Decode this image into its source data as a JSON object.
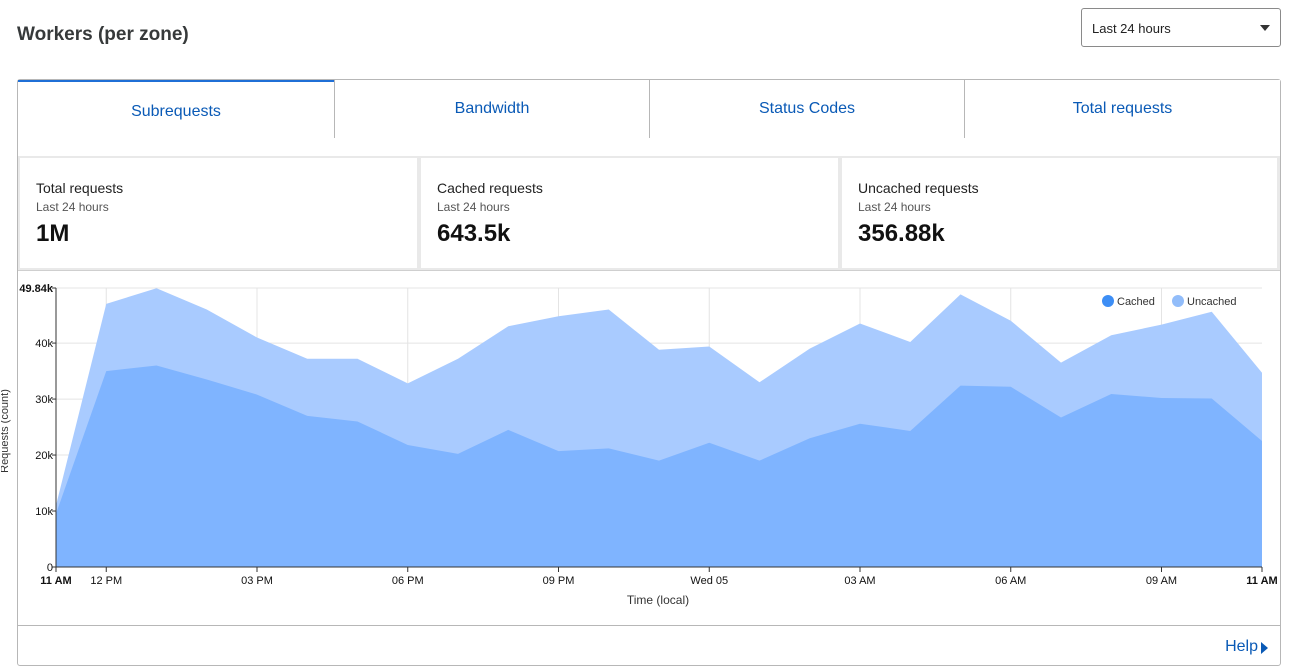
{
  "header": {
    "title": "Workers (per zone)"
  },
  "time_range": {
    "selected": "Last 24 hours"
  },
  "tabs": [
    {
      "label": "Subrequests",
      "active": true
    },
    {
      "label": "Bandwidth",
      "active": false
    },
    {
      "label": "Status Codes",
      "active": false
    },
    {
      "label": "Total requests",
      "active": false
    }
  ],
  "stats": [
    {
      "label": "Total requests",
      "period": "Last 24 hours",
      "value": "1M"
    },
    {
      "label": "Cached requests",
      "period": "Last 24 hours",
      "value": "643.5k"
    },
    {
      "label": "Uncached requests",
      "period": "Last 24 hours",
      "value": "356.88k"
    }
  ],
  "footer": {
    "help_label": "Help"
  },
  "colors": {
    "cached": "#7fb4ff",
    "uncached": "#a9cbff",
    "cached_dot": "#3d8ef5",
    "uncached_dot": "#92bdfa",
    "link": "#0a5ab6"
  },
  "chart_data": {
    "type": "area",
    "stacked": true,
    "xlabel": "Time (local)",
    "ylabel": "Requests (count)",
    "ylim": [
      0,
      49840
    ],
    "y_ticks": [
      {
        "value": 0,
        "label": "0"
      },
      {
        "value": 10000,
        "label": "10k"
      },
      {
        "value": 20000,
        "label": "20k"
      },
      {
        "value": 30000,
        "label": "30k"
      },
      {
        "value": 40000,
        "label": "40k"
      },
      {
        "value": 49840,
        "label": "49.84k"
      }
    ],
    "x_ticks": [
      {
        "index": 0,
        "label": "11 AM",
        "bold": true
      },
      {
        "index": 1,
        "label": "12 PM"
      },
      {
        "index": 4,
        "label": "03 PM"
      },
      {
        "index": 7,
        "label": "06 PM"
      },
      {
        "index": 10,
        "label": "09 PM"
      },
      {
        "index": 13,
        "label": "Wed 05"
      },
      {
        "index": 16,
        "label": "03 AM"
      },
      {
        "index": 19,
        "label": "06 AM"
      },
      {
        "index": 22,
        "label": "09 AM"
      },
      {
        "index": 24,
        "label": "11 AM",
        "bold": true
      }
    ],
    "legend": {
      "position": "top-right"
    },
    "grid": true,
    "series": [
      {
        "name": "Cached",
        "values": [
          9500,
          35000,
          36000,
          33500,
          30800,
          27000,
          26000,
          21800,
          20200,
          24500,
          20700,
          21200,
          19000,
          22200,
          19000,
          23000,
          25600,
          24300,
          32400,
          32200,
          26700,
          30900,
          30200,
          30100,
          22500
        ]
      },
      {
        "name": "Uncached",
        "values": [
          1500,
          12000,
          13800,
          12500,
          10200,
          10200,
          11200,
          11000,
          17000,
          18500,
          24100,
          24800,
          19800,
          17200,
          14000,
          16000,
          17900,
          15900,
          16300,
          11800,
          9800,
          10500,
          13100,
          15500,
          12200
        ]
      }
    ]
  }
}
